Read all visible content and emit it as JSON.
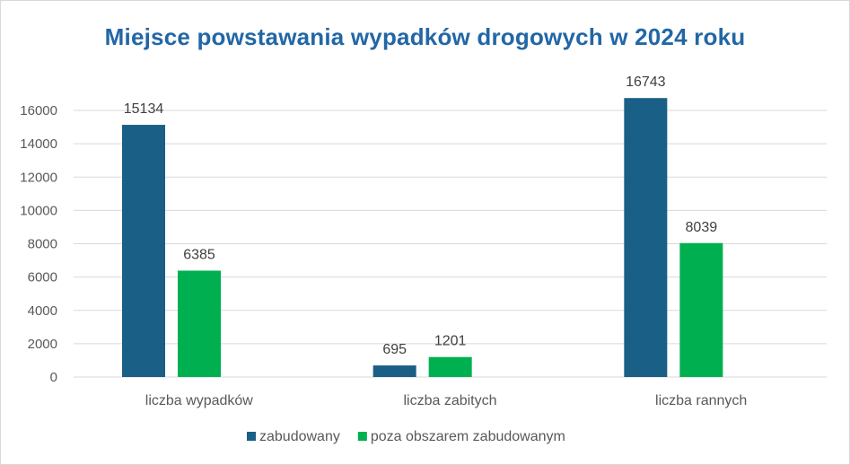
{
  "chart_data": {
    "type": "bar",
    "title": "Miejsce powstawania wypadków drogowych w 2024 roku",
    "categories": [
      "liczba wypadków",
      "liczba zabitych",
      "liczba rannych"
    ],
    "series": [
      {
        "name": "zabudowany",
        "color": "#1a5f85",
        "values": [
          15134,
          695,
          16743
        ]
      },
      {
        "name": "poza obszarem zabudowanym",
        "color": "#00b050",
        "values": [
          6385,
          1201,
          8039
        ]
      }
    ],
    "ylim": [
      0,
      16000
    ],
    "yticks": [
      0,
      2000,
      4000,
      6000,
      8000,
      10000,
      12000,
      14000,
      16000
    ],
    "grid": true,
    "legend": "bottom",
    "xlabel": "",
    "ylabel": ""
  }
}
